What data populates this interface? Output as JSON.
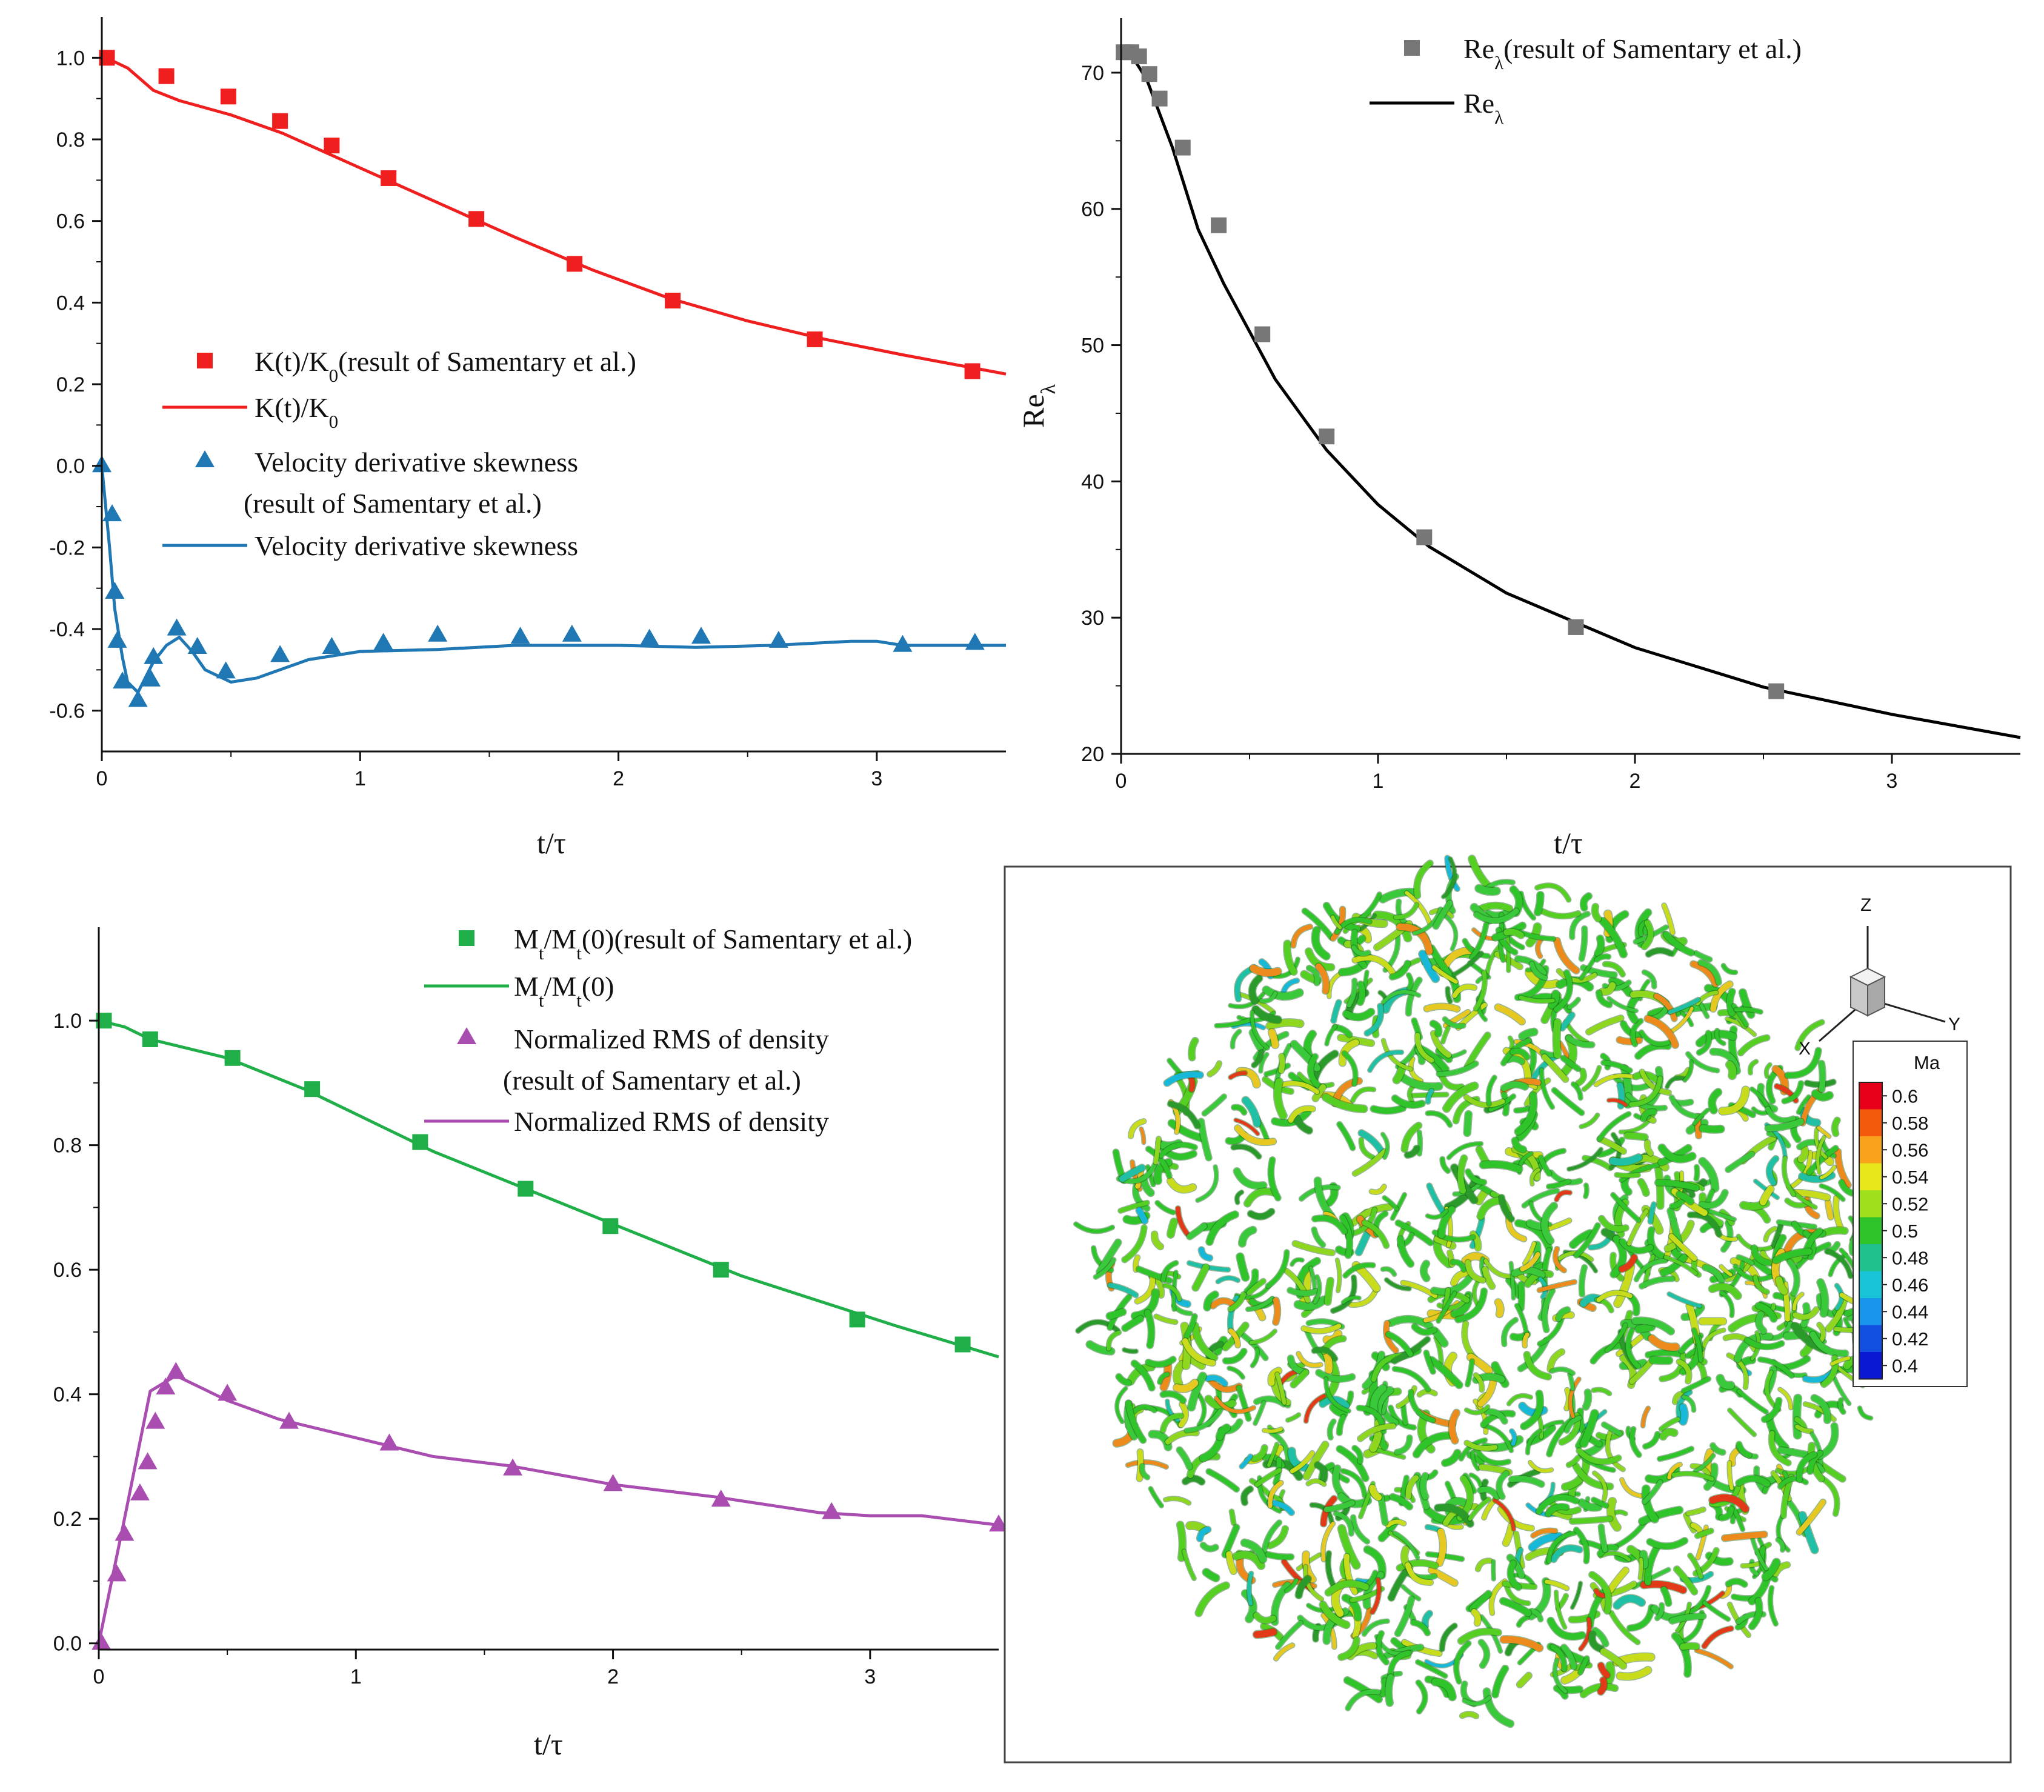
{
  "chart_data": [
    {
      "id": "panel_a",
      "type": "line",
      "xlabel": "t/τ",
      "ylabel": "",
      "xlim": [
        0,
        3.5
      ],
      "ylim": [
        -0.7,
        1.1
      ],
      "xticks": [
        0,
        1,
        2,
        3
      ],
      "xtick_labels": [
        "0",
        "1",
        "2",
        "3"
      ],
      "yticks": [
        -0.6,
        -0.4,
        -0.2,
        0.0,
        0.2,
        0.4,
        0.6,
        0.8,
        1.0
      ],
      "ytick_labels": [
        "-0.6",
        "-0.4",
        "-0.2",
        "0.0",
        "0.2",
        "0.4",
        "0.6",
        "0.8",
        "1.0"
      ],
      "legend_position": "center",
      "series": [
        {
          "name": "K(t)/K0(result of Samentary et al.)",
          "kind": "scatter",
          "marker": "square",
          "color": "#f01f1f",
          "label_parts": [
            {
              "t": "K(t)/K"
            },
            {
              "t": "0",
              "sub": true
            },
            {
              "t": "(result of Samentary et al.)"
            }
          ],
          "x": [
            0.02,
            0.25,
            0.49,
            0.69,
            0.89,
            1.11,
            1.45,
            1.83,
            2.21,
            2.76,
            3.37
          ],
          "y": [
            1.0,
            0.955,
            0.905,
            0.845,
            0.785,
            0.705,
            0.605,
            0.495,
            0.405,
            0.31,
            0.232
          ]
        },
        {
          "name": "K(t)/K0",
          "kind": "line",
          "color": "#f01f1f",
          "label_parts": [
            {
              "t": "K(t)/K"
            },
            {
              "t": "0",
              "sub": true
            }
          ],
          "x": [
            0,
            0.05,
            0.1,
            0.2,
            0.3,
            0.5,
            0.7,
            1.0,
            1.3,
            1.6,
            1.9,
            2.2,
            2.5,
            2.8,
            3.1,
            3.5
          ],
          "y": [
            0.99,
            0.99,
            0.975,
            0.92,
            0.895,
            0.86,
            0.815,
            0.73,
            0.645,
            0.56,
            0.48,
            0.41,
            0.355,
            0.31,
            0.272,
            0.225
          ]
        },
        {
          "name": "Velocity derivative skewness (result of Samentary et al.)",
          "kind": "scatter",
          "marker": "triangle",
          "color": "#1f77b4",
          "label_parts": [
            {
              "t": "Velocity derivative skewness"
            }
          ],
          "label_line2": "(result of Samentary et al.)",
          "x": [
            0.0,
            0.04,
            0.05,
            0.06,
            0.08,
            0.14,
            0.19,
            0.2,
            0.29,
            0.37,
            0.48,
            0.69,
            0.89,
            1.09,
            1.3,
            1.62,
            1.82,
            2.12,
            2.32,
            2.62,
            3.1,
            3.38
          ],
          "y": [
            0.0,
            -0.12,
            -0.31,
            -0.43,
            -0.53,
            -0.575,
            -0.525,
            -0.47,
            -0.4,
            -0.445,
            -0.505,
            -0.465,
            -0.445,
            -0.435,
            -0.415,
            -0.42,
            -0.415,
            -0.425,
            -0.42,
            -0.43,
            -0.44,
            -0.435
          ]
        },
        {
          "name": "Velocity derivative skewness",
          "kind": "line",
          "color": "#1f77b4",
          "label_parts": [
            {
              "t": "Velocity derivative skewness"
            }
          ],
          "x": [
            0,
            0.03,
            0.05,
            0.08,
            0.1,
            0.14,
            0.2,
            0.25,
            0.3,
            0.35,
            0.4,
            0.5,
            0.6,
            0.8,
            1.0,
            1.3,
            1.6,
            2.0,
            2.3,
            2.6,
            2.9,
            3.0,
            3.1,
            3.2,
            3.5
          ],
          "y": [
            0,
            -0.2,
            -0.35,
            -0.47,
            -0.53,
            -0.555,
            -0.48,
            -0.44,
            -0.42,
            -0.455,
            -0.5,
            -0.53,
            -0.52,
            -0.475,
            -0.455,
            -0.45,
            -0.44,
            -0.44,
            -0.445,
            -0.44,
            -0.43,
            -0.43,
            -0.44,
            -0.44,
            -0.44
          ]
        }
      ]
    },
    {
      "id": "panel_b",
      "type": "line",
      "xlabel": "t/τ",
      "ylabel": "Reλ",
      "ylabel_parts": [
        {
          "t": "Re"
        },
        {
          "t": "λ",
          "sub": true
        }
      ],
      "xlim": [
        0,
        3.5
      ],
      "ylim": [
        20,
        74
      ],
      "xticks": [
        0,
        1,
        2,
        3
      ],
      "xtick_labels": [
        "0",
        "1",
        "2",
        "3"
      ],
      "yticks": [
        20,
        30,
        40,
        50,
        60,
        70
      ],
      "ytick_labels": [
        "20",
        "30",
        "40",
        "50",
        "60",
        "70"
      ],
      "legend_position": "top-right",
      "series": [
        {
          "name": "Reλ(result of Samentary et al.)",
          "kind": "scatter",
          "marker": "square",
          "color": "#777777",
          "label_parts": [
            {
              "t": "Re"
            },
            {
              "t": "λ",
              "sub": true
            },
            {
              "t": "(result of Samentary et al.)"
            }
          ],
          "x": [
            0.01,
            0.04,
            0.07,
            0.11,
            0.15,
            0.24,
            0.38,
            0.55,
            0.8,
            1.18,
            1.77,
            2.55
          ],
          "y": [
            71.5,
            71.5,
            71.2,
            69.9,
            68.1,
            64.5,
            58.8,
            50.8,
            43.3,
            35.9,
            29.3,
            24.6
          ]
        },
        {
          "name": "Reλ",
          "kind": "line",
          "color": "#000000",
          "label_parts": [
            {
              "t": "Re"
            },
            {
              "t": "λ",
              "sub": true
            }
          ],
          "x": [
            0,
            0.05,
            0.1,
            0.15,
            0.2,
            0.25,
            0.3,
            0.4,
            0.5,
            0.6,
            0.8,
            1.0,
            1.2,
            1.5,
            2.0,
            2.5,
            3.0,
            3.5
          ],
          "y": [
            72.0,
            71.0,
            69.5,
            67.0,
            64.5,
            61.5,
            58.5,
            54.5,
            51.0,
            47.5,
            42.3,
            38.3,
            35.2,
            31.8,
            27.8,
            24.9,
            22.9,
            21.2
          ]
        }
      ]
    },
    {
      "id": "panel_c",
      "type": "line",
      "xlabel": "t/τ",
      "ylabel": "",
      "xlim": [
        0,
        3.5
      ],
      "ylim": [
        -0.01,
        1.15
      ],
      "xticks": [
        0,
        1,
        2,
        3
      ],
      "xtick_labels": [
        "0",
        "1",
        "2",
        "3"
      ],
      "yticks": [
        0.0,
        0.2,
        0.4,
        0.6,
        0.8,
        1.0
      ],
      "ytick_labels": [
        "0.0",
        "0.2",
        "0.4",
        "0.6",
        "0.8",
        "1.0"
      ],
      "legend_position": "top-right",
      "series": [
        {
          "name": "Mt/Mt(0)(result of Samentary et al.)",
          "kind": "scatter",
          "marker": "square",
          "color": "#1fae48",
          "label_parts": [
            {
              "t": "M"
            },
            {
              "t": "t",
              "sub": true
            },
            {
              "t": "/M"
            },
            {
              "t": "t",
              "sub": true
            },
            {
              "t": "(0)(result of Samentary et al.)"
            }
          ],
          "x": [
            0.02,
            0.2,
            0.52,
            0.83,
            1.25,
            1.66,
            1.99,
            2.42,
            2.95,
            3.36
          ],
          "y": [
            1.0,
            0.97,
            0.94,
            0.89,
            0.805,
            0.73,
            0.67,
            0.6,
            0.52,
            0.48
          ]
        },
        {
          "name": "Mt/Mt(0)",
          "kind": "line",
          "color": "#1fae48",
          "label_parts": [
            {
              "t": "M"
            },
            {
              "t": "t",
              "sub": true
            },
            {
              "t": "/M"
            },
            {
              "t": "t",
              "sub": true
            },
            {
              "t": "(0)"
            }
          ],
          "x": [
            0,
            0.1,
            0.2,
            0.5,
            0.8,
            1.0,
            1.3,
            1.6,
            1.9,
            2.2,
            2.5,
            2.8,
            3.1,
            3.5
          ],
          "y": [
            1.0,
            0.99,
            0.97,
            0.94,
            0.89,
            0.85,
            0.79,
            0.74,
            0.69,
            0.64,
            0.59,
            0.55,
            0.51,
            0.46
          ]
        },
        {
          "name": "Normalized RMS of density (result of Samentary et al.)",
          "kind": "scatter",
          "marker": "triangle",
          "color": "#a94db0",
          "label_parts": [
            {
              "t": "Normalized RMS of density"
            }
          ],
          "label_line2": "(result of Samentary et al.)",
          "x": [
            0.01,
            0.07,
            0.1,
            0.16,
            0.19,
            0.22,
            0.26,
            0.3,
            0.5,
            0.74,
            1.13,
            1.61,
            2.0,
            2.42,
            2.85,
            3.5
          ],
          "y": [
            0.0,
            0.11,
            0.175,
            0.24,
            0.29,
            0.355,
            0.41,
            0.435,
            0.4,
            0.355,
            0.32,
            0.28,
            0.255,
            0.23,
            0.21,
            0.19
          ]
        },
        {
          "name": "Normalized RMS of density",
          "kind": "line",
          "color": "#a94db0",
          "label_parts": [
            {
              "t": "Normalized RMS of density"
            }
          ],
          "x": [
            0,
            0.1,
            0.2,
            0.3,
            0.4,
            0.5,
            0.7,
            1.0,
            1.3,
            1.6,
            2.0,
            2.4,
            2.8,
            3.0,
            3.2,
            3.5
          ],
          "y": [
            0.0,
            0.2,
            0.405,
            0.43,
            0.41,
            0.39,
            0.36,
            0.33,
            0.3,
            0.285,
            0.255,
            0.235,
            0.21,
            0.205,
            0.205,
            0.19
          ]
        }
      ]
    },
    {
      "id": "panel_d",
      "type": "heatmap",
      "title": "",
      "colorbar": {
        "label": "Ma",
        "levels": [
          "0.6",
          "0.58",
          "0.56",
          "0.54",
          "0.52",
          "0.5",
          "0.48",
          "0.46",
          "0.44",
          "0.42",
          "0.4"
        ],
        "colors": [
          "#e8001a",
          "#f45a0c",
          "#f9a21a",
          "#e7e81c",
          "#9fe01c",
          "#2fc42a",
          "#23c08f",
          "#19c4d8",
          "#1996ec",
          "#1450e0",
          "#0a18d6"
        ]
      },
      "triad": {
        "z": "Z",
        "y": "Y",
        "x": "X"
      },
      "palette": [
        "#2fc42a",
        "#3ac93a",
        "#55d022",
        "#8fd61e",
        "#c8dc1c",
        "#e6c820",
        "#ec8a1c",
        "#e23a18",
        "#1fc0a6",
        "#18b8d8",
        "#2a9a2a"
      ]
    }
  ]
}
